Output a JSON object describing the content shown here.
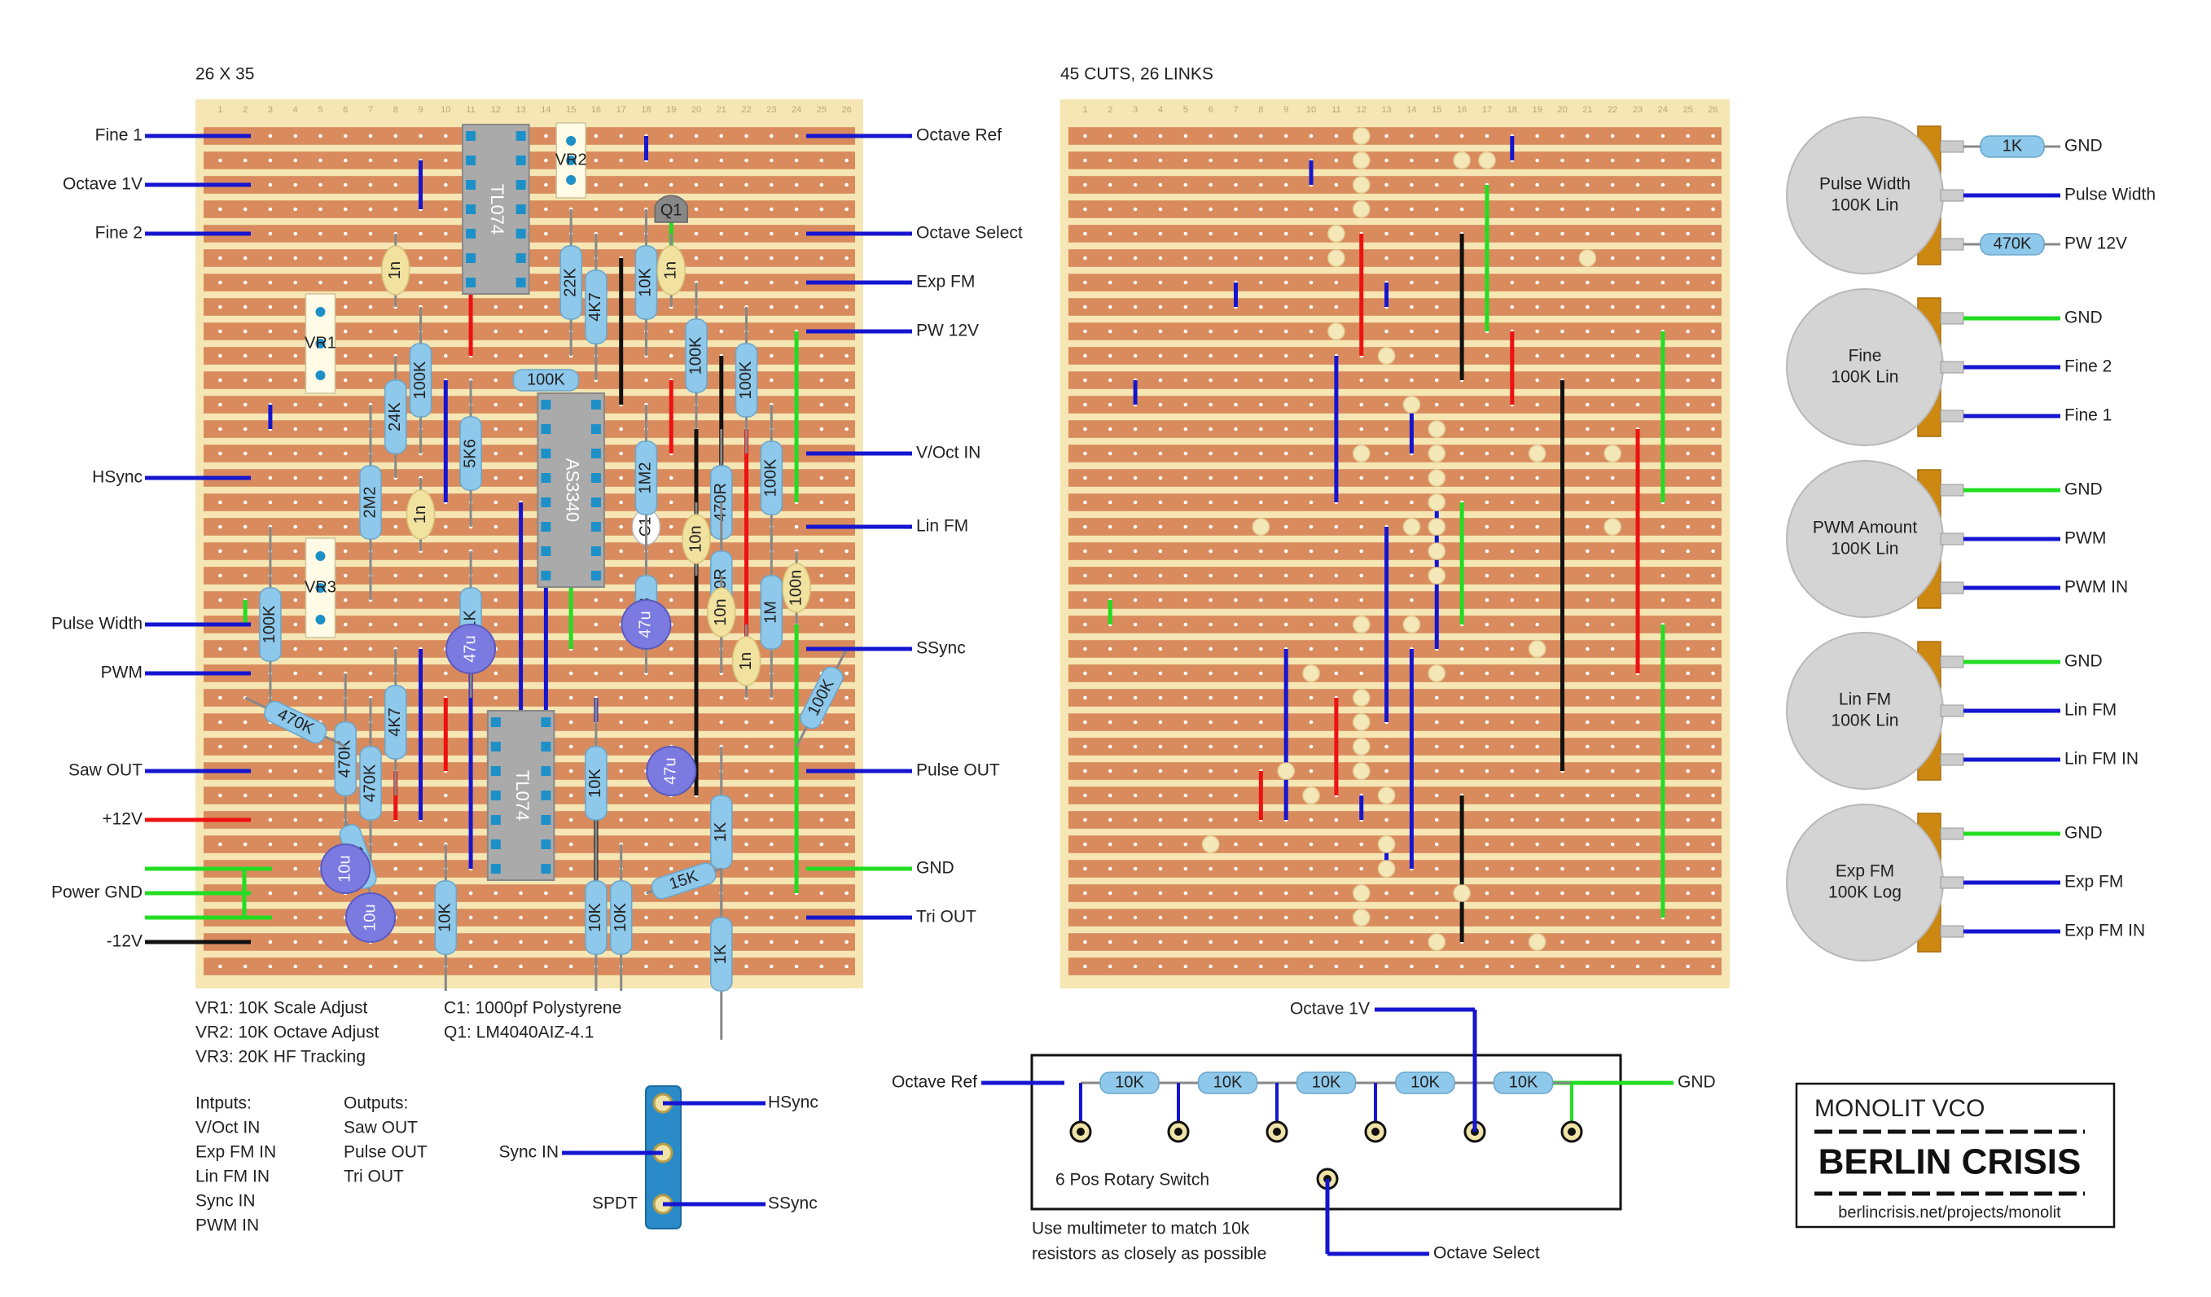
{
  "left_board": {
    "title": "26 X 35",
    "columns": 26,
    "rows": 35,
    "left_labels": [
      "Fine 1",
      "Octave 1V",
      "Fine 2",
      "HSync",
      "Pulse Width",
      "PWM",
      "Saw OUT",
      "+12V",
      "Power GND",
      "-12V"
    ],
    "right_labels": [
      "Octave Ref",
      "Octave Select",
      "Exp FM",
      "PW 12V",
      "V/Oct IN",
      "Lin FM",
      "SSync",
      "Pulse OUT",
      "GND",
      "Tri OUT"
    ],
    "ics": [
      "TL074",
      "AS3340",
      "TL074"
    ],
    "trimmers": [
      "VR1",
      "VR2",
      "VR3"
    ],
    "transistor": "Q1",
    "cap_c1": "C1",
    "resistors": [
      "22K",
      "4K7",
      "10K",
      "100K",
      "100K",
      "100K",
      "24K",
      "100K",
      "620R",
      "5K6",
      "1M2",
      "2M2",
      "470R",
      "100K",
      "1K8",
      "470R",
      "1M",
      "100K",
      "51K",
      "4K7",
      "470K",
      "470K",
      "100K",
      "100K",
      "10K",
      "1K",
      "1K",
      "10K",
      "10K",
      "10K",
      "15K",
      "1K"
    ],
    "ceramic_caps": [
      "1n",
      "1n",
      "1n",
      "1n",
      "10n",
      "10n",
      "100n"
    ],
    "electrolytics": [
      "47u",
      "47u",
      "47u",
      "10u",
      "10u"
    ]
  },
  "right_board": {
    "title": "45 CUTS, 26 LINKS",
    "columns": 26,
    "rows": 35
  },
  "notes": {
    "trimmers": [
      "VR1: 10K Scale Adjust",
      "VR2: 10K Octave Adjust",
      "VR3: 20K HF Tracking"
    ],
    "parts": [
      "C1: 1000pf Polystyrene",
      "Q1: LM4040AIZ-4.1"
    ],
    "inputs_title": "Intputs:",
    "inputs": [
      "V/Oct IN",
      "Exp FM IN",
      "Lin FM IN",
      "Sync IN",
      "PWM IN"
    ],
    "outputs_title": "Outputs:",
    "outputs": [
      "Saw OUT",
      "Pulse OUT",
      "Tri OUT"
    ]
  },
  "spdt": {
    "label_left": "Sync IN",
    "label_bottom_left": "SPDT",
    "out_top": "HSync",
    "out_bottom": "SSync"
  },
  "rotary": {
    "top_label": "Octave 1V",
    "left_label": "Octave Ref",
    "right_label": "GND",
    "bottom_label": "Octave Select",
    "switch_label": "6 Pos Rotary Switch",
    "resistors": [
      "10K",
      "10K",
      "10K",
      "10K",
      "10K"
    ],
    "note_line1": "Use multimeter to match 10k",
    "note_line2": "resistors as closely as possible"
  },
  "pots": [
    {
      "name": "Pulse Width",
      "spec": "100K Lin",
      "leads": [
        {
          "label": "GND",
          "resistor": "1K"
        },
        {
          "label": "Pulse Width",
          "resistor": ""
        },
        {
          "label": "PW 12V",
          "resistor": "470K"
        }
      ],
      "lead_colors": [
        "#1515d0",
        "#1515d0",
        "#1515d0"
      ]
    },
    {
      "name": "Fine",
      "spec": "100K Lin",
      "leads": [
        {
          "label": "GND",
          "resistor": ""
        },
        {
          "label": "Fine 2",
          "resistor": ""
        },
        {
          "label": "Fine 1",
          "resistor": ""
        }
      ],
      "lead_colors": [
        "#22dd22",
        "#1515d0",
        "#1515d0"
      ]
    },
    {
      "name": "PWM Amount",
      "spec": "100K Lin",
      "leads": [
        {
          "label": "GND",
          "resistor": ""
        },
        {
          "label": "PWM",
          "resistor": ""
        },
        {
          "label": "PWM IN",
          "resistor": ""
        }
      ],
      "lead_colors": [
        "#22dd22",
        "#1515d0",
        "#1515d0"
      ]
    },
    {
      "name": "Lin FM",
      "spec": "100K Lin",
      "leads": [
        {
          "label": "GND",
          "resistor": ""
        },
        {
          "label": "Lin FM",
          "resistor": ""
        },
        {
          "label": "Lin FM IN",
          "resistor": ""
        }
      ],
      "lead_colors": [
        "#22dd22",
        "#1515d0",
        "#1515d0"
      ]
    },
    {
      "name": "Exp FM",
      "spec": "100K Log",
      "leads": [
        {
          "label": "GND",
          "resistor": ""
        },
        {
          "label": "Exp FM",
          "resistor": ""
        },
        {
          "label": "Exp FM IN",
          "resistor": ""
        }
      ],
      "lead_colors": [
        "#22dd22",
        "#1515d0",
        "#1515d0"
      ]
    }
  ],
  "brand": {
    "title": "MONOLIT VCO",
    "logo": "BERLIN CRISIS",
    "url": "berlincrisis.net/projects/monolit"
  },
  "colors": {
    "board_bg": "#f5e6b4",
    "strip": "#d98b5d",
    "wire_blue": "#1515d0",
    "wire_green": "#22dd22",
    "wire_red": "#ee1111",
    "wire_black": "#111111",
    "resistor": "#8ec8ea",
    "ic": "#aaaaaa",
    "electrolytic": "#7a7ae0",
    "ceramic": "#f2e2a0",
    "pot": "#d4d4d4",
    "pot_lug": "#cc8811"
  }
}
